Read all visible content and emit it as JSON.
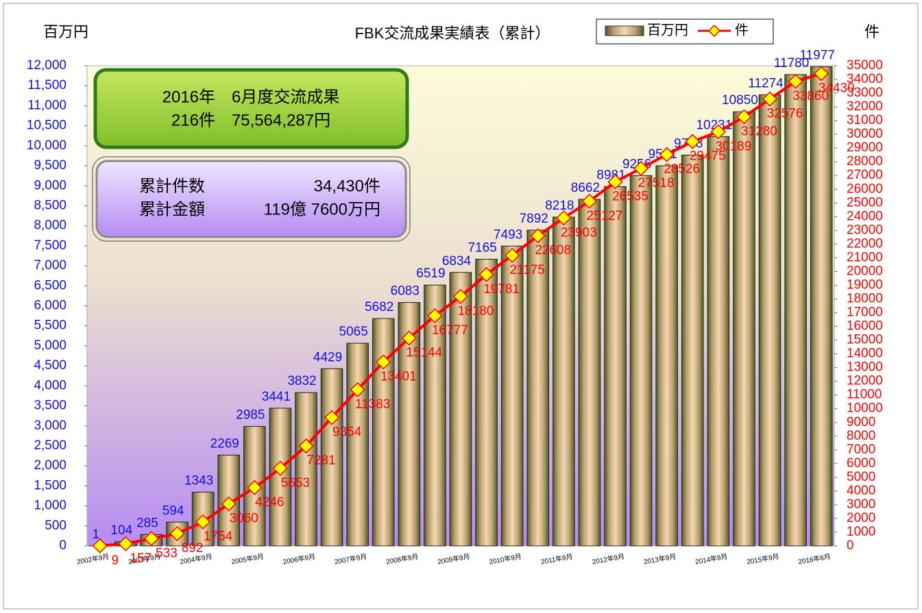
{
  "chart_data": {
    "type": "bar_line",
    "title": "FBK交流成果実績表（累計）",
    "y_label": "百万円",
    "y2_label": "件",
    "categories": [
      "2002年9月",
      null,
      "2003年9月",
      null,
      "2004年9月",
      null,
      "2005年9月",
      null,
      "2006年9月",
      null,
      "2007年9月",
      null,
      "2008年9月",
      null,
      "2009年9月",
      null,
      "2010年9月",
      null,
      "2011年9月",
      null,
      "2012年9月",
      null,
      "2013年9月",
      null,
      "2014年9月",
      null,
      "2015年9月",
      null,
      "2016年6月"
    ],
    "series": [
      {
        "name": "百万円",
        "type": "bar",
        "color": "#e8c9a0",
        "label_color": "#1010e0",
        "values": [
          1,
          104,
          285,
          594,
          1343,
          2269,
          2985,
          3441,
          3832,
          4429,
          5065,
          5682,
          6083,
          6519,
          6834,
          7165,
          7493,
          7892,
          8218,
          8662,
          8981,
          9256,
          9501,
          9768,
          10231,
          10850,
          11274,
          11780,
          11977
        ]
      },
      {
        "name": "件",
        "type": "line",
        "axis": "y2",
        "color": "#ff0000",
        "marker_color": "#ffff00",
        "label_color": "#ff0000",
        "values": [
          9,
          157,
          533,
          892,
          1754,
          3060,
          4246,
          5653,
          7281,
          9354,
          11383,
          13401,
          15144,
          16777,
          18180,
          19781,
          21175,
          22608,
          23903,
          25127,
          26535,
          27518,
          28526,
          29475,
          30189,
          31280,
          32576,
          33860,
          34430
        ]
      }
    ],
    "ylim": [
      0,
      12000
    ],
    "yticks": [
      0,
      500,
      {
        "value": 1000,
        "label": "1,000"
      },
      {
        "value": 1500,
        "label": "1,500"
      },
      {
        "value": 2000,
        "label": "2,000"
      },
      {
        "value": 2500,
        "label": "2,500"
      },
      {
        "value": 3000,
        "label": "3,000"
      },
      {
        "value": 3500,
        "label": "3,500"
      },
      {
        "value": 4000,
        "label": "4,000"
      },
      {
        "value": 4500,
        "label": "4,500"
      },
      {
        "value": 5000,
        "label": "5,000"
      },
      {
        "value": 5500,
        "label": "5,500"
      },
      {
        "value": 6000,
        "label": "6,000"
      },
      {
        "value": 6500,
        "label": "6,500"
      },
      {
        "value": 7000,
        "label": "7,000"
      },
      {
        "value": 7500,
        "label": "7,500"
      },
      {
        "value": 8000,
        "label": "8,000"
      },
      {
        "value": 8500,
        "label": "8,500"
      },
      {
        "value": 9000,
        "label": "9,000"
      },
      {
        "value": 9500,
        "label": "9,500"
      },
      {
        "value": 10000,
        "label": "10,000"
      },
      {
        "value": 10500,
        "label": "10,500"
      },
      {
        "value": 11000,
        "label": "11,000"
      },
      {
        "value": 11500,
        "label": "11,500"
      },
      {
        "value": 12000,
        "label": "12,000"
      }
    ],
    "y2lim": [
      0,
      35000
    ],
    "y2ticks": [
      0,
      1000,
      2000,
      3000,
      4000,
      5000,
      6000,
      7000,
      8000,
      9000,
      10000,
      11000,
      12000,
      13000,
      14000,
      15000,
      16000,
      17000,
      18000,
      19000,
      20000,
      21000,
      22000,
      23000,
      24000,
      25000,
      26000,
      27000,
      28000,
      29000,
      30000,
      31000,
      32000,
      33000,
      34000,
      35000
    ],
    "legend": "top-right",
    "annotations": [
      {
        "lines": [
          "2016年　6月度交流成果",
          "216件　75,564,287円"
        ]
      },
      {
        "rows": [
          [
            "累計件数",
            "34,430件"
          ],
          [
            "累計金額",
            "119億 7600万円"
          ]
        ]
      }
    ]
  }
}
